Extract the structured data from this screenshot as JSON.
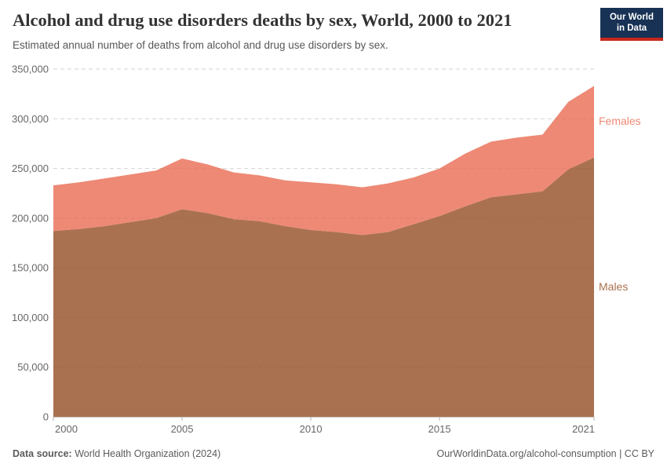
{
  "header": {
    "logo": {
      "line1": "Our World",
      "line2": "in Data",
      "bg_color": "#173254",
      "accent_color": "#c8281e"
    }
  },
  "chart_data": {
    "type": "area",
    "stacked": true,
    "title": "Alcohol and drug use disorders deaths by sex, World, 2000 to 2021",
    "subtitle": "Estimated annual number of deaths from alcohol and drug use disorders by sex.",
    "x": [
      2000,
      2001,
      2002,
      2003,
      2004,
      2005,
      2006,
      2007,
      2008,
      2009,
      2010,
      2011,
      2012,
      2013,
      2014,
      2015,
      2016,
      2017,
      2018,
      2019,
      2020,
      2021
    ],
    "series": [
      {
        "name": "Males",
        "color": "#aa7150",
        "values": [
          187000,
          189000,
          192000,
          196000,
          200000,
          209000,
          205000,
          199000,
          197000,
          192000,
          188000,
          186000,
          183000,
          186000,
          194000,
          202000,
          212000,
          221000,
          224000,
          227000,
          249000,
          261000
        ]
      },
      {
        "name": "Females",
        "color": "#ed8975",
        "values": [
          46000,
          47000,
          48000,
          48000,
          48000,
          51000,
          49000,
          47000,
          46000,
          46000,
          48000,
          48000,
          48000,
          49000,
          47000,
          48000,
          53000,
          56000,
          57000,
          57000,
          68000,
          72000
        ]
      }
    ],
    "xlim": [
      2000,
      2021
    ],
    "ylim": [
      0,
      350000
    ],
    "yticks": [
      0,
      50000,
      100000,
      150000,
      200000,
      250000,
      300000,
      350000
    ],
    "ytick_labels": [
      "0",
      "50,000",
      "100,000",
      "150,000",
      "200,000",
      "250,000",
      "300,000",
      "350,000"
    ],
    "xticks": [
      2000,
      2005,
      2010,
      2015,
      2021
    ],
    "grid": true,
    "grid_color": "#dedede",
    "axis_label_color": "#666666",
    "legend_position": "right-of-plot"
  },
  "footer": {
    "datasource_label": "Data source:",
    "datasource_value": " World Health Organization (2024)",
    "right_text": "OurWorldinData.org/alcohol-consumption | CC BY"
  }
}
